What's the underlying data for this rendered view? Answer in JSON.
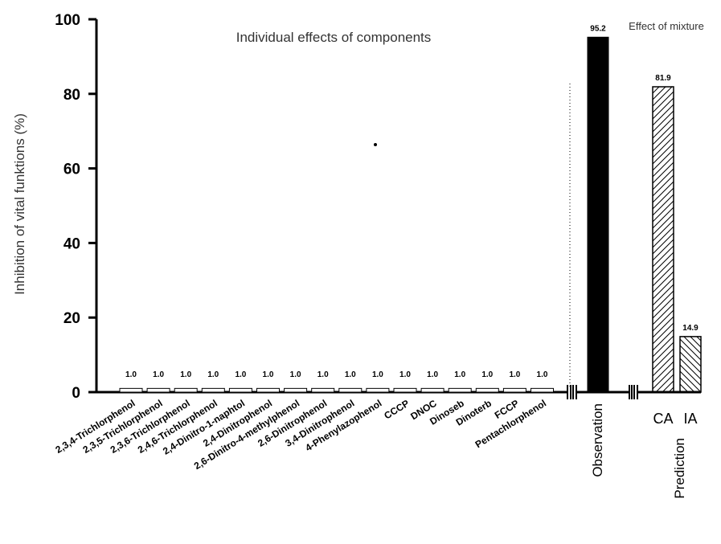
{
  "chart_data": {
    "type": "bar",
    "ylabel": "Inhibition of vital funktions (%)",
    "ylim": [
      0,
      100
    ],
    "yticks": [
      0,
      20,
      40,
      60,
      80,
      100
    ],
    "annotations": {
      "individual_title": "Individual effects of components",
      "mixture_title": "Effect of mixture"
    },
    "categories": [
      "2,3,4-Trichlorphenol",
      "2,3,5-Trichlorphenol",
      "2,3,6-Trichlorphenol",
      "2,4,6-Trichlorphenol",
      "2,4-Dinitro-1-naphtol",
      "2,4-Dinitrophenol",
      "2,6-Dinitro-4-methylphenol",
      "2,6-Dinitrophenol",
      "3,4-Dinitrophenol",
      "4-Phenylazophenol",
      "CCCP",
      "DNOC",
      "Dinoseb",
      "Dinoterb",
      "FCCP",
      "Pentachlorphenol"
    ],
    "values": [
      1.0,
      1.0,
      1.0,
      1.0,
      1.0,
      1.0,
      1.0,
      1.0,
      1.0,
      1.0,
      1.0,
      1.0,
      1.0,
      1.0,
      1.0,
      1.0
    ],
    "value_labels": [
      "1.0",
      "1.0",
      "1.0",
      "1.0",
      "1.0",
      "1.0",
      "1.0",
      "1.0",
      "1.0",
      "1.0",
      "1.0",
      "1.0",
      "1.0",
      "1.0",
      "1.0",
      "1.0"
    ],
    "observation": {
      "group_label": "Observation",
      "value": 95.2,
      "value_label": "95.2",
      "color": "#000000"
    },
    "prediction": {
      "group_label": "Prediction",
      "bars": [
        {
          "name": "CA",
          "value": 81.9,
          "value_label": "81.9",
          "pattern": "diagonal-up"
        },
        {
          "name": "IA",
          "value": 14.9,
          "value_label": "14.9",
          "pattern": "diagonal-down"
        }
      ]
    },
    "axis_break": true,
    "grid": false
  }
}
